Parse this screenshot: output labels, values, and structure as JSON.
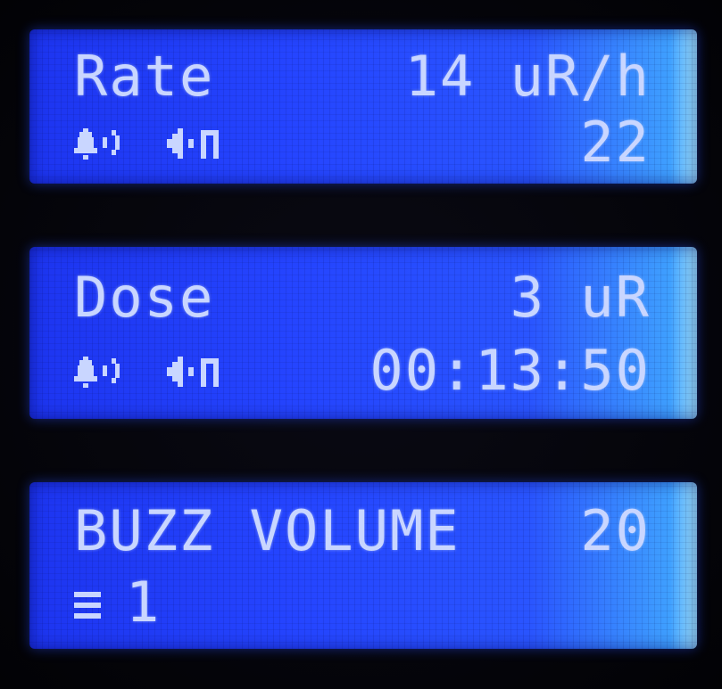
{
  "screens": [
    {
      "id": "rate",
      "label": "Rate",
      "value": "14 uR/h",
      "icons": [
        "bell-sound-icon",
        "speaker-pulse-icon"
      ],
      "secondary": "22"
    },
    {
      "id": "dose",
      "label": "Dose",
      "value": "3 uR",
      "icons": [
        "bell-sound-icon",
        "speaker-pulse-icon"
      ],
      "secondary": "00:13:50"
    },
    {
      "id": "buzz",
      "label": "BUZZ VOLUME",
      "value": "20",
      "icons": [
        "menu-lines-icon"
      ],
      "secondary": "1"
    }
  ],
  "colors": {
    "lcd_blue": "#2545ff",
    "lcd_text": "#c9d6ff",
    "bezel": "#030308"
  }
}
